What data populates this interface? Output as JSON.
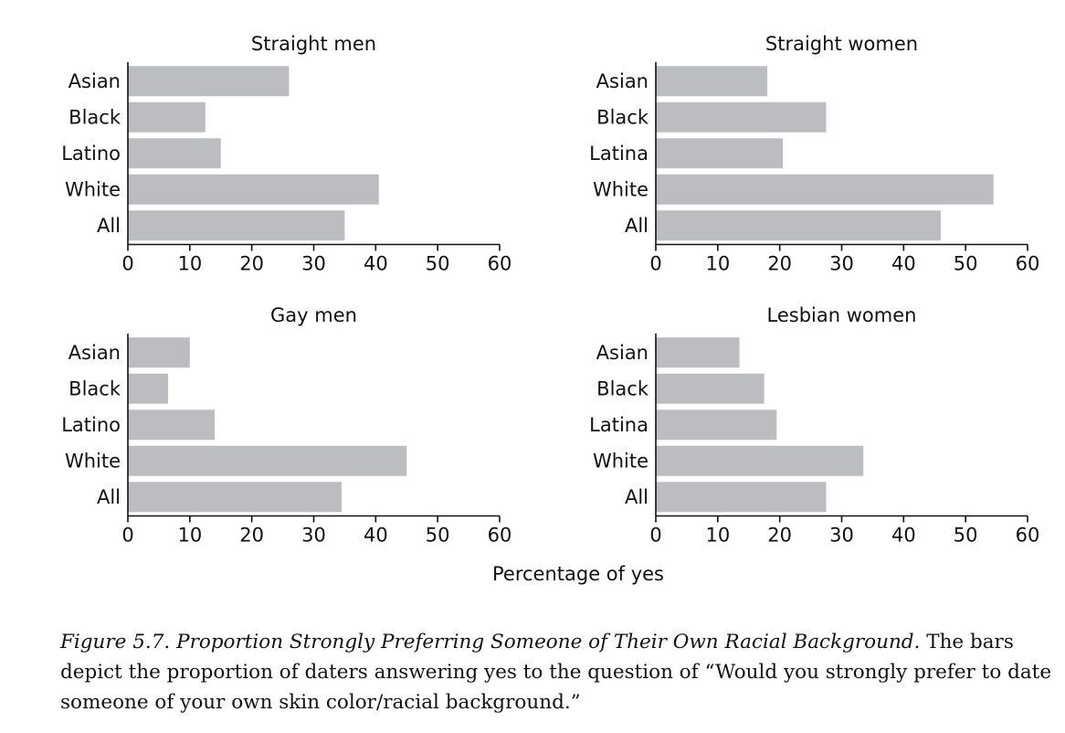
{
  "chart_data": [
    {
      "type": "bar",
      "orientation": "horizontal",
      "title": "Straight men",
      "categories": [
        "Asian",
        "Black",
        "Latino",
        "White",
        "All"
      ],
      "values": [
        26,
        12.5,
        15,
        40.5,
        35
      ],
      "xlim": [
        0,
        60
      ],
      "xticks": [
        0,
        10,
        20,
        30,
        40,
        50,
        60
      ],
      "grid": false
    },
    {
      "type": "bar",
      "orientation": "horizontal",
      "title": "Straight women",
      "categories": [
        "Asian",
        "Black",
        "Latina",
        "White",
        "All"
      ],
      "values": [
        18,
        27.5,
        20.5,
        54.5,
        46
      ],
      "xlim": [
        0,
        60
      ],
      "xticks": [
        0,
        10,
        20,
        30,
        40,
        50,
        60
      ],
      "grid": false
    },
    {
      "type": "bar",
      "orientation": "horizontal",
      "title": "Gay men",
      "categories": [
        "Asian",
        "Black",
        "Latino",
        "White",
        "All"
      ],
      "values": [
        10,
        6.5,
        14,
        45,
        34.5
      ],
      "xlim": [
        0,
        60
      ],
      "xticks": [
        0,
        10,
        20,
        30,
        40,
        50,
        60
      ],
      "grid": false
    },
    {
      "type": "bar",
      "orientation": "horizontal",
      "title": "Lesbian women",
      "categories": [
        "Asian",
        "Black",
        "Latina",
        "White",
        "All"
      ],
      "values": [
        13.5,
        17.5,
        19.5,
        33.5,
        27.5
      ],
      "xlim": [
        0,
        60
      ],
      "xticks": [
        0,
        10,
        20,
        30,
        40,
        50,
        60
      ],
      "grid": false
    }
  ],
  "xlabel": "Percentage of yes",
  "bar_color": "#bcbdc0",
  "caption": {
    "figure_label": "Figure 5.7.",
    "figure_title": "Proportion Strongly Preferring Someone of Their Own Racial Background.",
    "text": "The bars depict the proportion of daters answering yes to the question of “Would you strongly prefer to date someone of your own skin color/racial background.”"
  }
}
